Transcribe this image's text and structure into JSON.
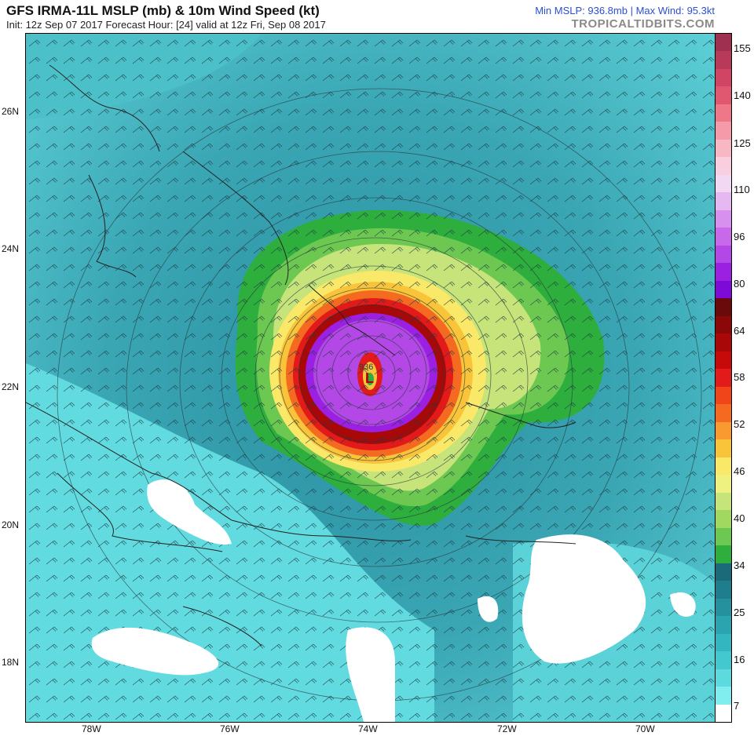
{
  "header": {
    "title": "GFS IRMA-11L MSLP (mb) & 10m Wind Speed (kt)",
    "subtitle": "Init: 12z Sep 07 2017   Forecast Hour: [24]   valid at 12z Fri, Sep 08 2017",
    "stats": "Min MSLP: 936.8mb | Max Wind: 95.3kt",
    "brand": "TROPICALTIDBITS.COM"
  },
  "axes": {
    "lat_labels": [
      "26N",
      "24N",
      "22N",
      "20N",
      "18N"
    ],
    "lon_labels": [
      "78W",
      "76W",
      "74W",
      "72W",
      "70W"
    ]
  },
  "storm": {
    "center_lat": 22.0,
    "center_lon": -74.0,
    "marker": "L",
    "min_pressure_label": "936"
  },
  "colorbar": {
    "labels": [
      "155",
      "140",
      "125",
      "110",
      "96",
      "80",
      "64",
      "58",
      "52",
      "46",
      "40",
      "34",
      "25",
      "16",
      "7"
    ],
    "colors": [
      "#a03050",
      "#b83a5a",
      "#cf4563",
      "#e05870",
      "#ee7888",
      "#f59aa8",
      "#f7b8c4",
      "#f9cfe0",
      "#f2d8f2",
      "#e6b8f2",
      "#d890ee",
      "#c868ea",
      "#b448e6",
      "#9b20e2",
      "#7e0ad8",
      "#6b0a0a",
      "#8a0808",
      "#a80808",
      "#c60a0a",
      "#e21a1a",
      "#f0441a",
      "#f46a20",
      "#f89a30",
      "#fac43a",
      "#fae868",
      "#eef080",
      "#c6e47a",
      "#a0d860",
      "#6cc850",
      "#2eae3c",
      "#1a6a7a",
      "#1f7e8e",
      "#25919f",
      "#2ba4b0",
      "#34b6c0",
      "#44c8d0",
      "#5cdade",
      "#80eeee",
      "#ffffff"
    ]
  }
}
